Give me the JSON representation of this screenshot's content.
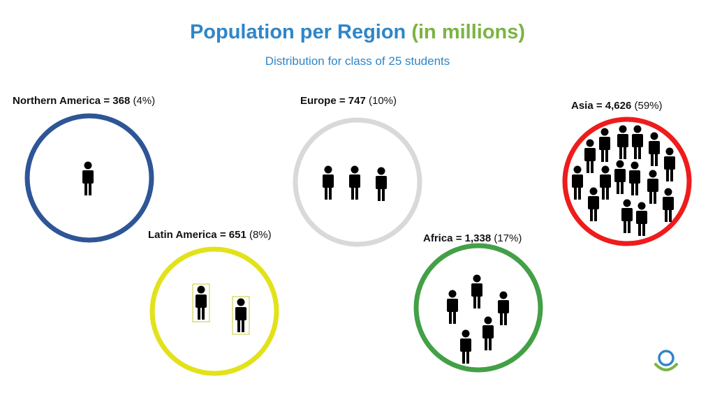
{
  "header": {
    "title": "Population per Region",
    "title_accent": "(in millions)",
    "subtitle": "Distribution for class of 25 students"
  },
  "colors": {
    "title": "#2e86c8",
    "accent": "#7cb342",
    "northern_america": "#2e5596",
    "europe": "#d9d9d9",
    "asia": "#ee1c1c",
    "latin_america": "#e2e21a",
    "africa": "#43a047",
    "figure": "#000000"
  },
  "regions": [
    {
      "id": "northern-america",
      "name": "Northern America",
      "population": "368",
      "percent": "(4%)",
      "students": 1,
      "color_key": "northern_america"
    },
    {
      "id": "europe",
      "name": "Europe",
      "population": "747",
      "percent": "(10%)",
      "students": 3,
      "color_key": "europe"
    },
    {
      "id": "asia",
      "name": "Asia",
      "population": "4,626",
      "percent": "(59%)",
      "students": 15,
      "color_key": "asia"
    },
    {
      "id": "latin-america",
      "name": "Latin America",
      "population": "651",
      "percent": "(8%)",
      "students": 2,
      "color_key": "latin_america"
    },
    {
      "id": "africa",
      "name": "Africa",
      "population": "1,338",
      "percent": "(17%)",
      "students": 4,
      "color_key": "africa"
    }
  ],
  "logo": {
    "icon": "organization-logo-icon"
  }
}
